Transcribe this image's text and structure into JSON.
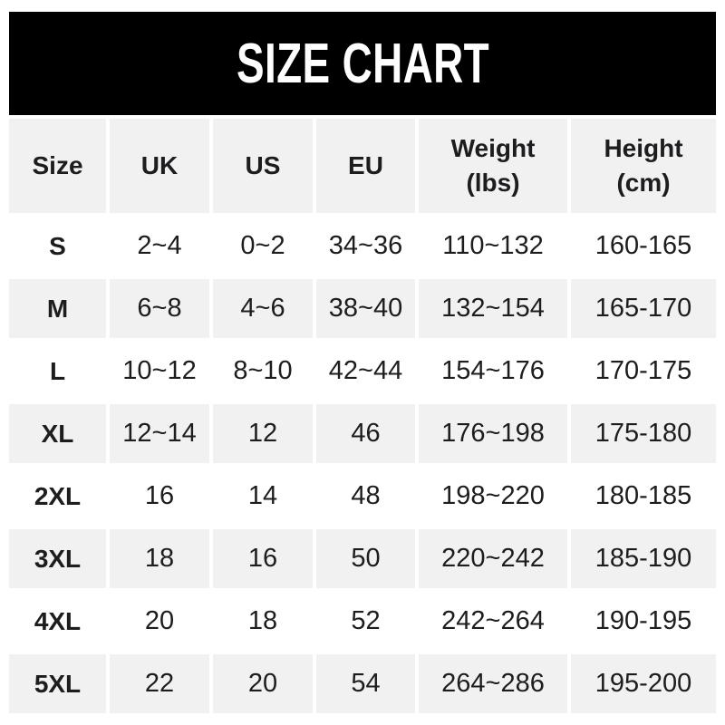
{
  "banner": {
    "title": "SIZE CHART",
    "bg_color": "#000000",
    "text_color": "#ffffff"
  },
  "colors": {
    "header_bg": "#f1f1f2",
    "alt_row_bg": "#f1f1f2",
    "plain_row_bg": "#ffffff",
    "text": "#1d1d1f"
  },
  "chart_data": {
    "type": "table",
    "title": "SIZE CHART",
    "columns": [
      {
        "key": "size",
        "label": "Size",
        "lines": [
          "Size"
        ]
      },
      {
        "key": "uk",
        "label": "UK",
        "lines": [
          "UK"
        ]
      },
      {
        "key": "us",
        "label": "US",
        "lines": [
          "US"
        ]
      },
      {
        "key": "eu",
        "label": "EU",
        "lines": [
          "EU"
        ]
      },
      {
        "key": "weight",
        "label": "Weight (lbs)",
        "lines": [
          "Weight",
          "(lbs)"
        ]
      },
      {
        "key": "height",
        "label": "Height (cm)",
        "lines": [
          "Height",
          "(cm)"
        ]
      }
    ],
    "rows": [
      {
        "size": "S",
        "uk": "2~4",
        "us": "0~2",
        "eu": "34~36",
        "weight": "110~132",
        "height": "160-165"
      },
      {
        "size": "M",
        "uk": "6~8",
        "us": "4~6",
        "eu": "38~40",
        "weight": "132~154",
        "height": "165-170"
      },
      {
        "size": "L",
        "uk": "10~12",
        "us": "8~10",
        "eu": "42~44",
        "weight": "154~176",
        "height": "170-175"
      },
      {
        "size": "XL",
        "uk": "12~14",
        "us": "12",
        "eu": "46",
        "weight": "176~198",
        "height": "175-180"
      },
      {
        "size": "2XL",
        "uk": "16",
        "us": "14",
        "eu": "48",
        "weight": "198~220",
        "height": "180-185"
      },
      {
        "size": "3XL",
        "uk": "18",
        "us": "16",
        "eu": "50",
        "weight": "220~242",
        "height": "185-190"
      },
      {
        "size": "4XL",
        "uk": "20",
        "us": "18",
        "eu": "52",
        "weight": "242~264",
        "height": "190-195"
      },
      {
        "size": "5XL",
        "uk": "22",
        "us": "20",
        "eu": "54",
        "weight": "264~286",
        "height": "195-200"
      }
    ],
    "layout": {
      "legend": "none",
      "grid": "white gutters between gray cells",
      "striping": "header gray; data rows alternate white/gray starting with white"
    }
  }
}
